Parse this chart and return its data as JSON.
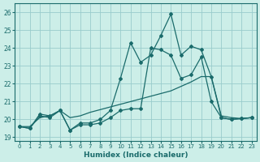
{
  "xlabel": "Humidex (Indice chaleur)",
  "xlim": [
    -0.5,
    23.5
  ],
  "ylim": [
    18.8,
    26.5
  ],
  "yticks": [
    19,
    20,
    21,
    22,
    23,
    24,
    25,
    26
  ],
  "xticks": [
    0,
    1,
    2,
    3,
    4,
    5,
    6,
    7,
    8,
    9,
    10,
    11,
    12,
    13,
    14,
    15,
    16,
    17,
    18,
    19,
    20,
    21,
    22,
    23
  ],
  "bg_color": "#cceee8",
  "grid_color": "#99cccc",
  "line_color": "#1a6b6b",
  "series_spiky_x": [
    0,
    1,
    2,
    3,
    4,
    5,
    6,
    7,
    8,
    9,
    10,
    11,
    12,
    13,
    14,
    15,
    16,
    17,
    18,
    19,
    20,
    21,
    22,
    23
  ],
  "series_spiky_y": [
    19.6,
    19.5,
    20.3,
    20.2,
    20.5,
    19.4,
    19.8,
    19.8,
    20.0,
    20.5,
    22.3,
    24.3,
    23.2,
    23.6,
    24.7,
    25.9,
    23.6,
    24.1,
    23.9,
    22.4,
    20.1,
    20.0,
    20.05,
    20.1
  ],
  "series_mid_x": [
    0,
    1,
    2,
    3,
    4,
    5,
    6,
    7,
    8,
    9,
    10,
    11,
    12,
    13,
    14,
    15,
    16,
    17,
    18,
    19,
    20,
    21,
    22,
    23
  ],
  "series_mid_y": [
    19.6,
    19.5,
    20.2,
    20.1,
    20.5,
    19.4,
    19.7,
    19.7,
    19.8,
    20.1,
    20.5,
    20.6,
    20.6,
    24.0,
    23.9,
    23.6,
    22.3,
    22.5,
    23.5,
    21.0,
    20.1,
    20.0,
    20.05,
    20.1
  ],
  "series_smooth_x": [
    0,
    1,
    2,
    3,
    4,
    5,
    6,
    7,
    8,
    9,
    10,
    11,
    12,
    13,
    14,
    15,
    16,
    17,
    18,
    19,
    20,
    21,
    22,
    23
  ],
  "series_smooth_y": [
    19.6,
    19.6,
    20.1,
    20.2,
    20.5,
    20.1,
    20.2,
    20.4,
    20.55,
    20.7,
    20.85,
    21.0,
    21.15,
    21.3,
    21.45,
    21.6,
    21.85,
    22.1,
    22.4,
    22.4,
    20.2,
    20.1,
    20.05,
    20.1
  ]
}
